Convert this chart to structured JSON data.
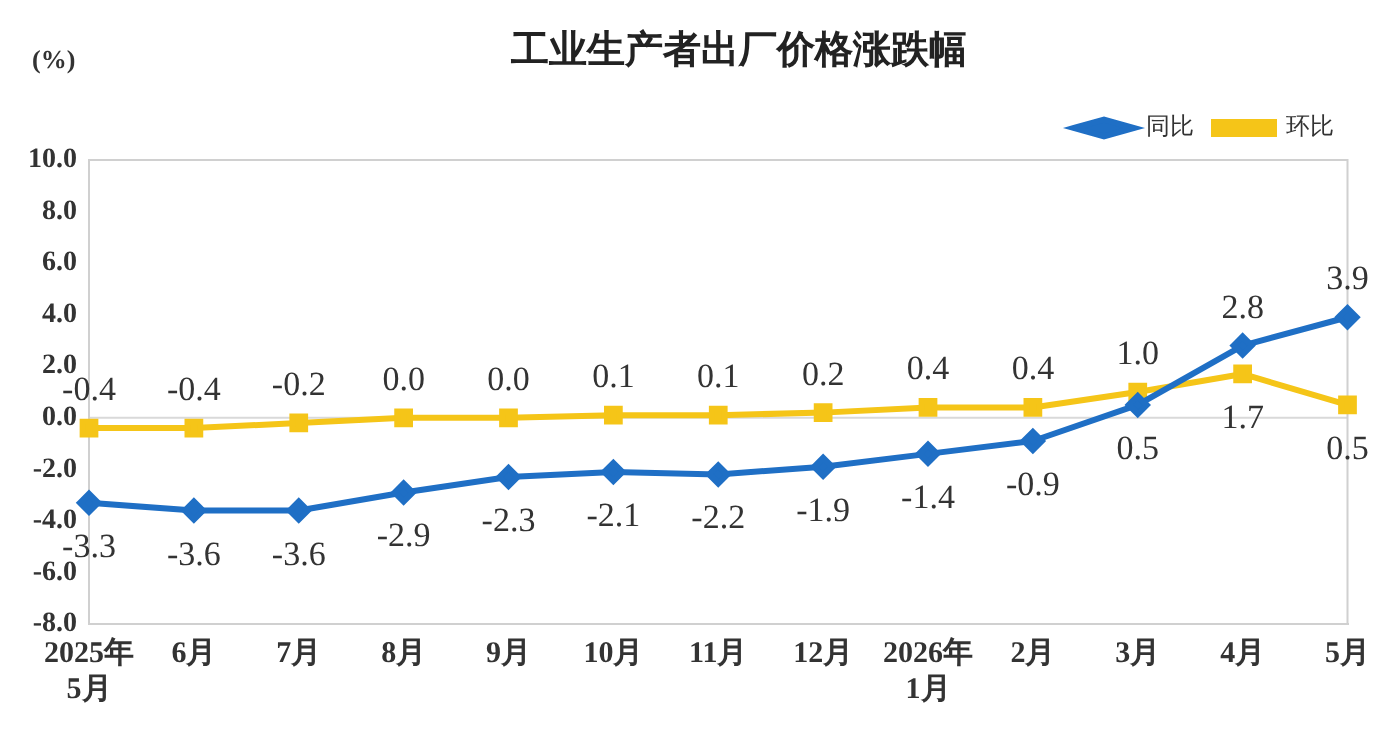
{
  "chart_data": {
    "type": "line",
    "title": "工业生产者出厂价格涨跌幅",
    "ylabel": "(%)",
    "categories": [
      "2025年\n5月",
      "6月",
      "7月",
      "8月",
      "9月",
      "10月",
      "11月",
      "12月",
      "2026年\n1月",
      "2月",
      "3月",
      "4月",
      "5月"
    ],
    "series": [
      {
        "name": "同比",
        "color": "#1f6fc5",
        "marker": "diamond",
        "values": [
          -3.3,
          -3.6,
          -3.6,
          -2.9,
          -2.3,
          -2.1,
          -2.2,
          -1.9,
          -1.4,
          -0.9,
          0.5,
          2.8,
          3.9
        ],
        "value_labels": [
          "-3.3",
          "-3.6",
          "-3.6",
          "-2.9",
          "-2.3",
          "-2.1",
          "-2.2",
          "-1.9",
          "-1.4",
          "-0.9",
          "0.5",
          "2.8",
          "3.9"
        ]
      },
      {
        "name": "环比",
        "color": "#f5c518",
        "marker": "square",
        "values": [
          -0.4,
          -0.4,
          -0.2,
          0.0,
          0.0,
          0.1,
          0.1,
          0.2,
          0.4,
          0.4,
          1.0,
          1.7,
          0.5
        ],
        "value_labels": [
          "-0.4",
          "-0.4",
          "-0.2",
          "0.0",
          "0.0",
          "0.1",
          "0.1",
          "0.2",
          "0.4",
          "0.4",
          "1.0",
          "1.7",
          "0.5"
        ]
      }
    ],
    "ylim": [
      -8,
      10
    ],
    "yticks": [
      {
        "value": -8,
        "label": "-8.0"
      },
      {
        "value": -6,
        "label": "-6.0"
      },
      {
        "value": -4,
        "label": "-4.0"
      },
      {
        "value": -2,
        "label": "-2.0"
      },
      {
        "value": 0,
        "label": "0.0"
      },
      {
        "value": 2,
        "label": "2.0"
      },
      {
        "value": 4,
        "label": "4.0"
      },
      {
        "value": 6,
        "label": "6.0"
      },
      {
        "value": 8,
        "label": "8.0"
      },
      {
        "value": 10,
        "label": "10.0"
      }
    ],
    "ref_lines": [
      {
        "axis": "y",
        "value": 0,
        "color": "#d9d9d9"
      }
    ],
    "grid": false,
    "legend": "top right",
    "line_style": "solid"
  }
}
